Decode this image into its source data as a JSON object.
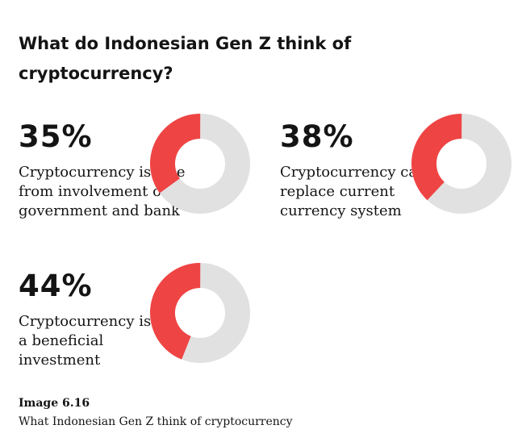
{
  "title": "What do Indonesian Gen Z think of cryptocurrency?",
  "colors": {
    "filled": "#EF4444",
    "remaining": "#E1E1E1",
    "text": "#141414"
  },
  "chart_data": [
    {
      "type": "pie",
      "value": 35,
      "percent_label": "35%",
      "label": "Cryptocurrency is free from involvement of government and bank"
    },
    {
      "type": "pie",
      "value": 38,
      "percent_label": "38%",
      "label": "Cryptocurrency can replace current currency system"
    },
    {
      "type": "pie",
      "value": 44,
      "percent_label": "44%",
      "label": "Cryptocurrency is a beneficial investment"
    }
  ],
  "caption": {
    "label": "Image 6.16",
    "text": "What Indonesian Gen Z think of cryptocurrency"
  }
}
